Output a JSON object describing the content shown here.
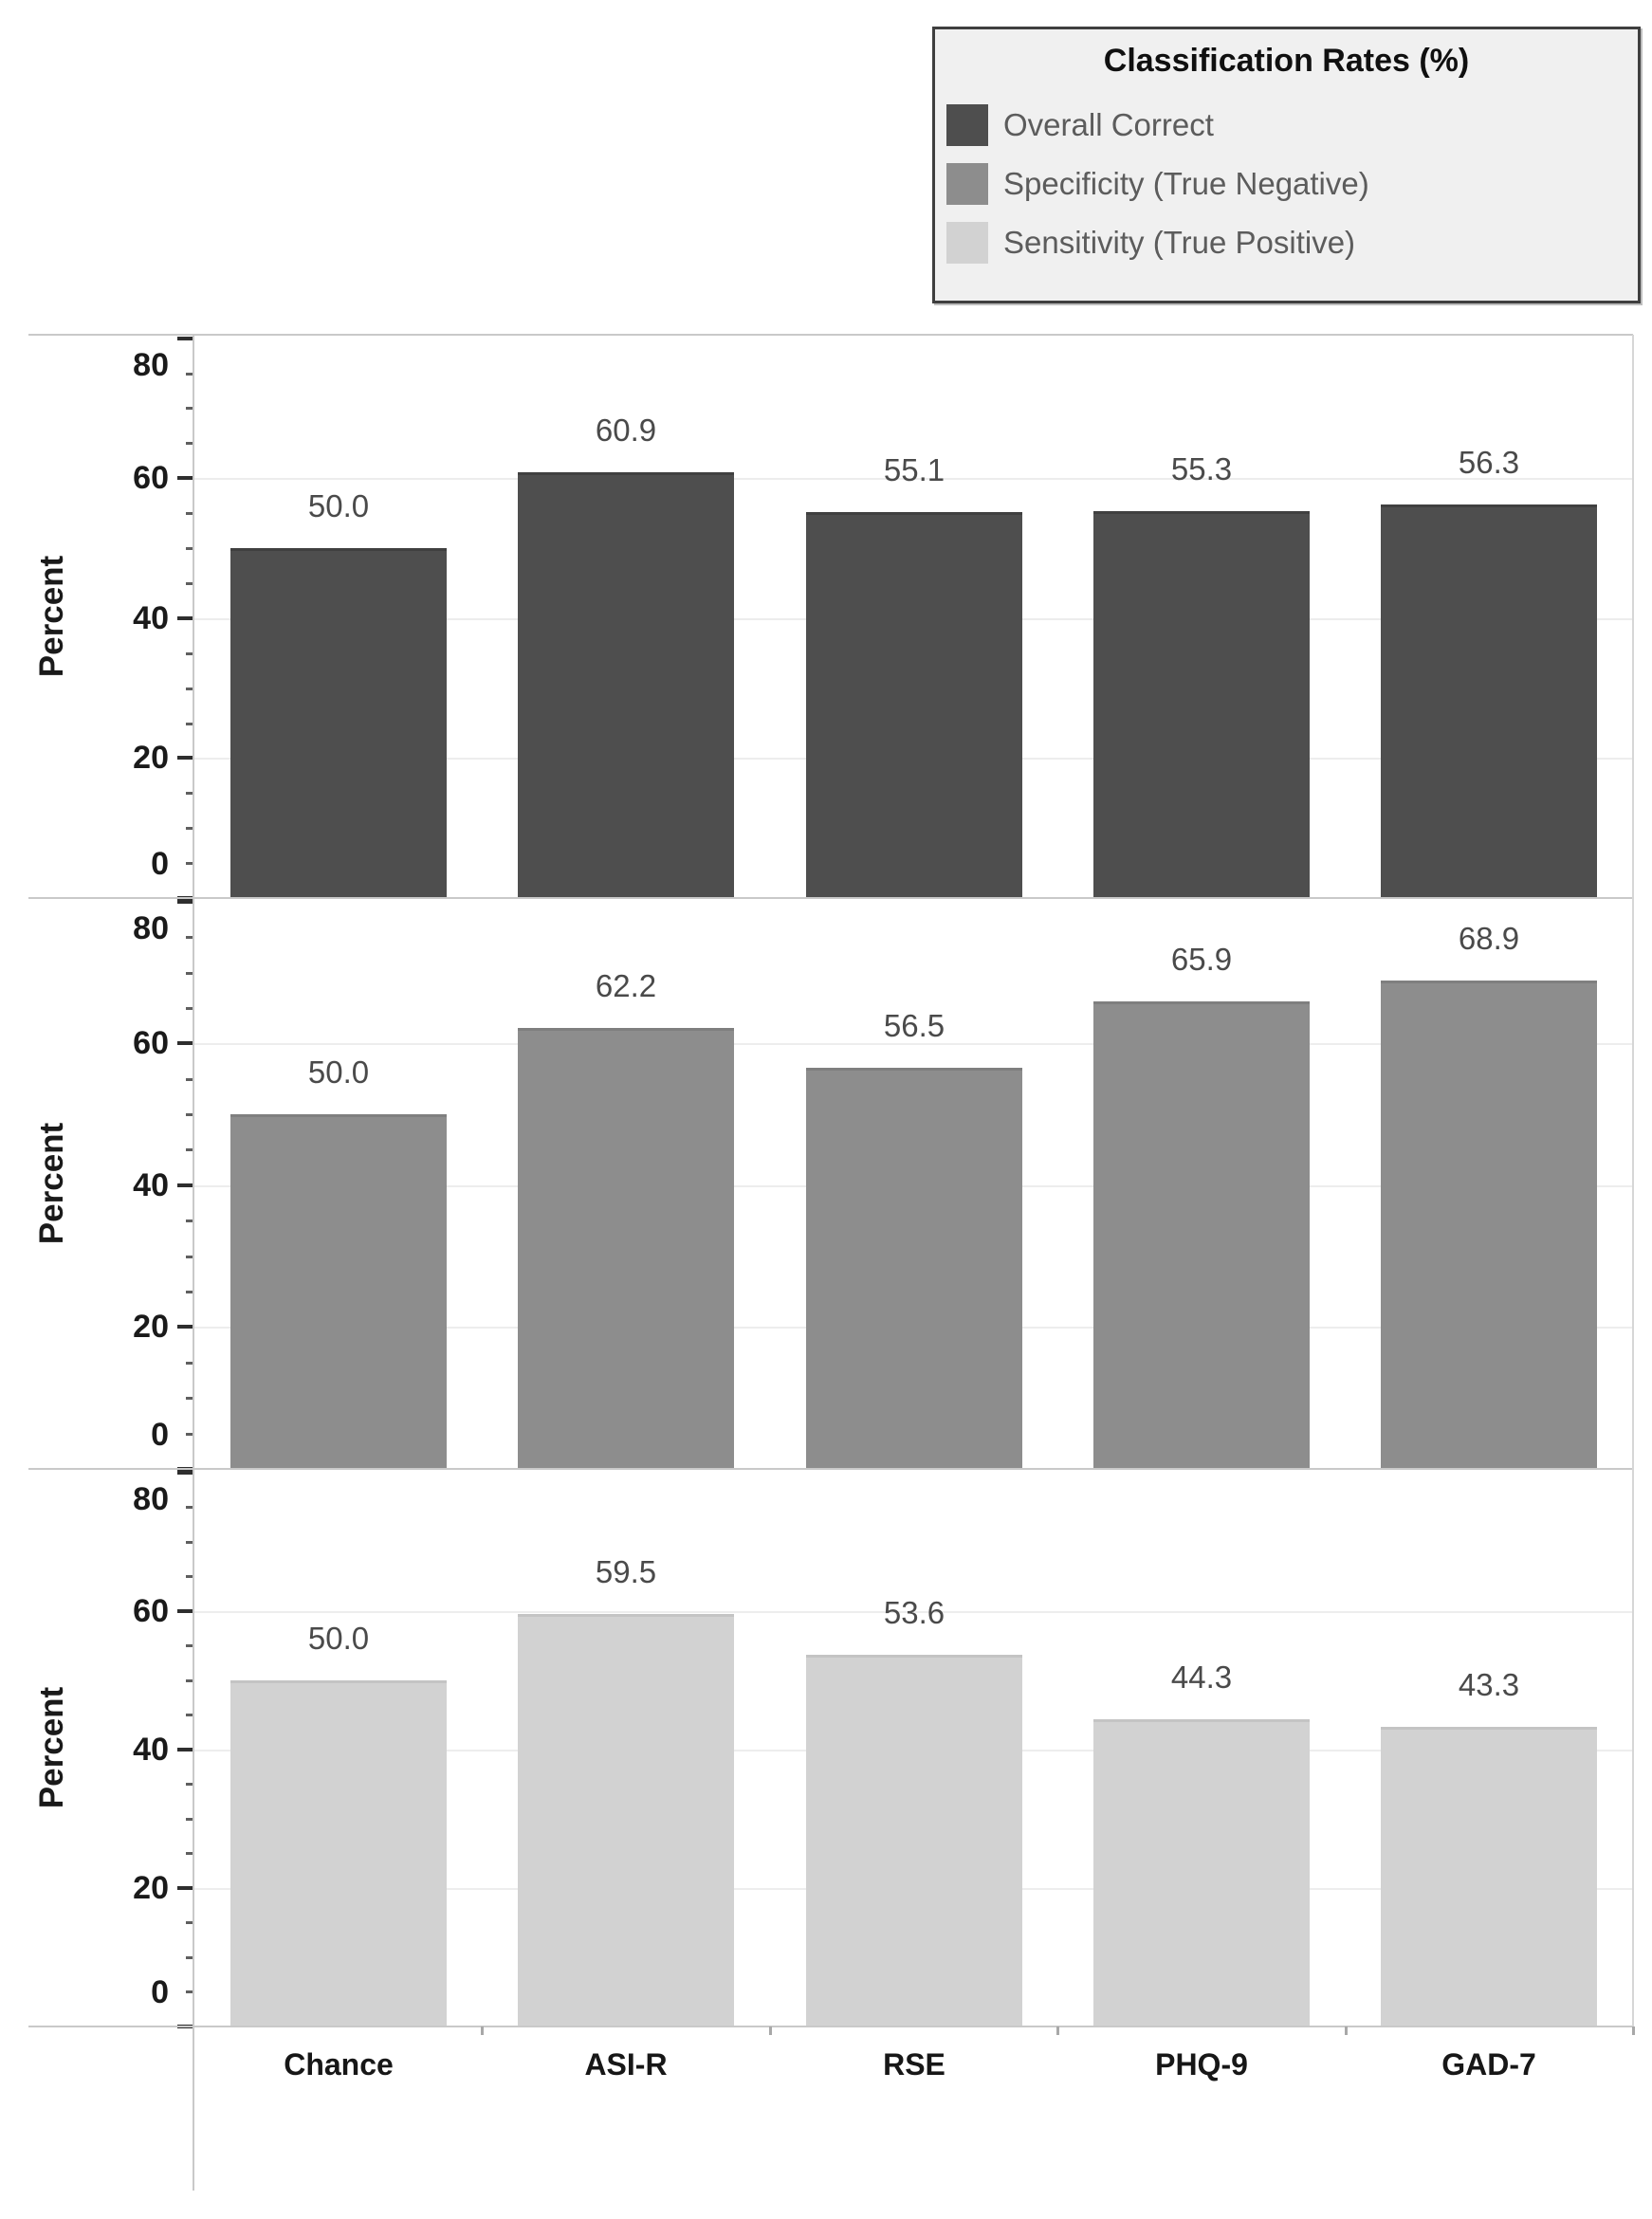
{
  "legend": {
    "title": "Classification Rates (%)",
    "items": [
      {
        "label": "Overall Correct"
      },
      {
        "label": "Specificity (True Negative)"
      },
      {
        "label": "Sensitivity (True Positive)"
      }
    ]
  },
  "colors": {
    "series": [
      "#4e4e4e",
      "#8d8d8d",
      "#d2d2d2"
    ],
    "series_edge": [
      "#404040",
      "#7f7f7f",
      "#c4c4c4"
    ],
    "grid": "#ededed",
    "frame": "#c9c9c9",
    "right_border": "#d6d6d6",
    "tick_major": "#2e2e2e",
    "tick_minor": "#5f5f5f",
    "tick_label": "#1a1a1a",
    "value_label": "#4a4a4a",
    "category_label": "#171717",
    "boundary_tick": "#a8a8a8"
  },
  "chart_data": {
    "type": "bar",
    "title": "Classification Rates (%)",
    "facet": "one panel per series, stacked vertically, shared x-axis",
    "categories": [
      "Chance",
      "ASI-R",
      "RSE",
      "PHQ-9",
      "GAD-7"
    ],
    "xlabel": "",
    "ylabel": "Percent",
    "ylim": [
      0,
      80.5
    ],
    "yticks": [
      0,
      20,
      40,
      60,
      80
    ],
    "minor_tick_step": 5,
    "grid": true,
    "legend_position": "top-right",
    "value_label_format": "one decimal place",
    "series": [
      {
        "name": "Overall Correct",
        "values": [
          50.0,
          60.9,
          55.1,
          55.3,
          56.3
        ]
      },
      {
        "name": "Specificity (True Negative)",
        "values": [
          50.0,
          62.2,
          56.5,
          65.9,
          68.9
        ]
      },
      {
        "name": "Sensitivity (True Positive)",
        "values": [
          50.0,
          59.5,
          53.6,
          44.3,
          43.3
        ]
      }
    ]
  }
}
